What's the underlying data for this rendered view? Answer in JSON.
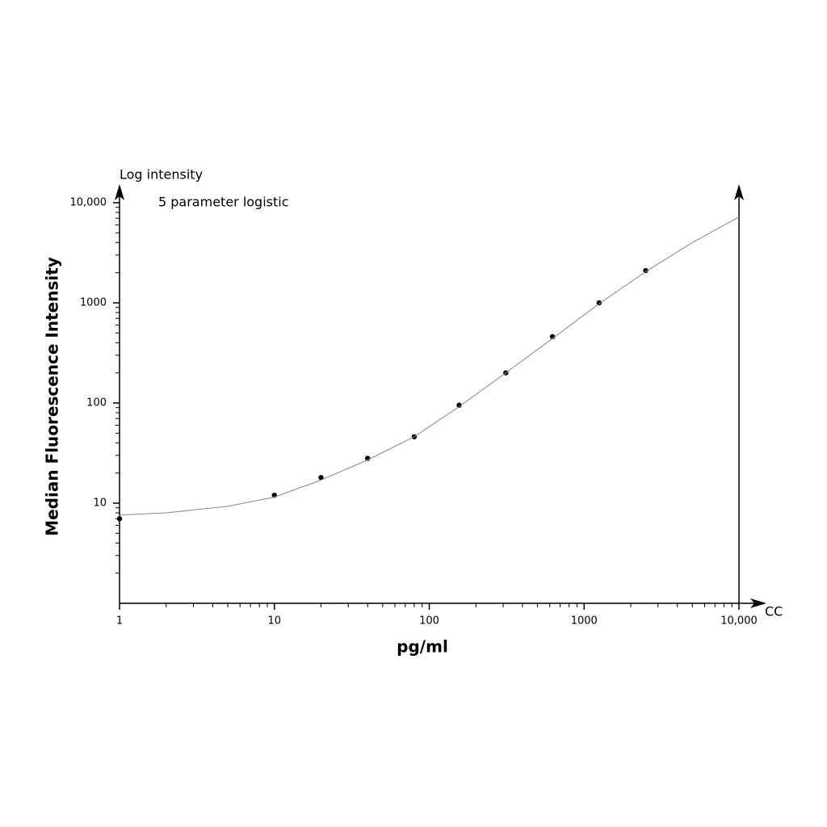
{
  "chart_data": {
    "type": "scatter",
    "y_axis_label": "Log intensity",
    "annotation": "5 parameter logistic",
    "x_axis_end_label": "CC",
    "xlabel": "pg/ml",
    "ylabel": "Median Fluorescence Intensity",
    "log_x": true,
    "log_y": true,
    "xlim": [
      1,
      10000
    ],
    "ylim": [
      1,
      10000
    ],
    "xticks": [
      1,
      10,
      100,
      1000,
      {
        "value": 10000,
        "label": "10,000"
      }
    ],
    "yticks": [
      10,
      100,
      1000,
      {
        "value": 10000,
        "label": "10,000"
      }
    ],
    "xminor": [
      2,
      3,
      4,
      5,
      6,
      7,
      8,
      9,
      20,
      30,
      40,
      50,
      60,
      70,
      80,
      90,
      200,
      300,
      400,
      500,
      600,
      700,
      800,
      900,
      2000,
      3000,
      4000,
      5000,
      6000,
      7000,
      8000,
      9000
    ],
    "yminor": [
      2,
      3,
      4,
      5,
      6,
      7,
      8,
      9,
      20,
      30,
      40,
      50,
      60,
      70,
      80,
      90,
      200,
      300,
      400,
      500,
      600,
      700,
      800,
      900,
      2000,
      3000,
      4000,
      5000,
      6000,
      7000,
      8000,
      9000
    ],
    "series": [
      {
        "kind": "points",
        "color": "#000000",
        "x": [
          1,
          10,
          20,
          40,
          80,
          156,
          312,
          625,
          1250,
          2500
        ],
        "values": [
          7,
          12,
          18,
          28,
          46,
          95,
          200,
          460,
          1000,
          2100
        ]
      },
      {
        "kind": "curve",
        "color": "#888888",
        "x": [
          1,
          2,
          5,
          10,
          20,
          40,
          80,
          156,
          312,
          625,
          1250,
          2500,
          5000,
          10000
        ],
        "values": [
          7.6,
          8,
          9.3,
          11.5,
          17,
          27,
          46,
          92,
          200,
          440,
          980,
          2050,
          4000,
          7200
        ]
      }
    ]
  }
}
